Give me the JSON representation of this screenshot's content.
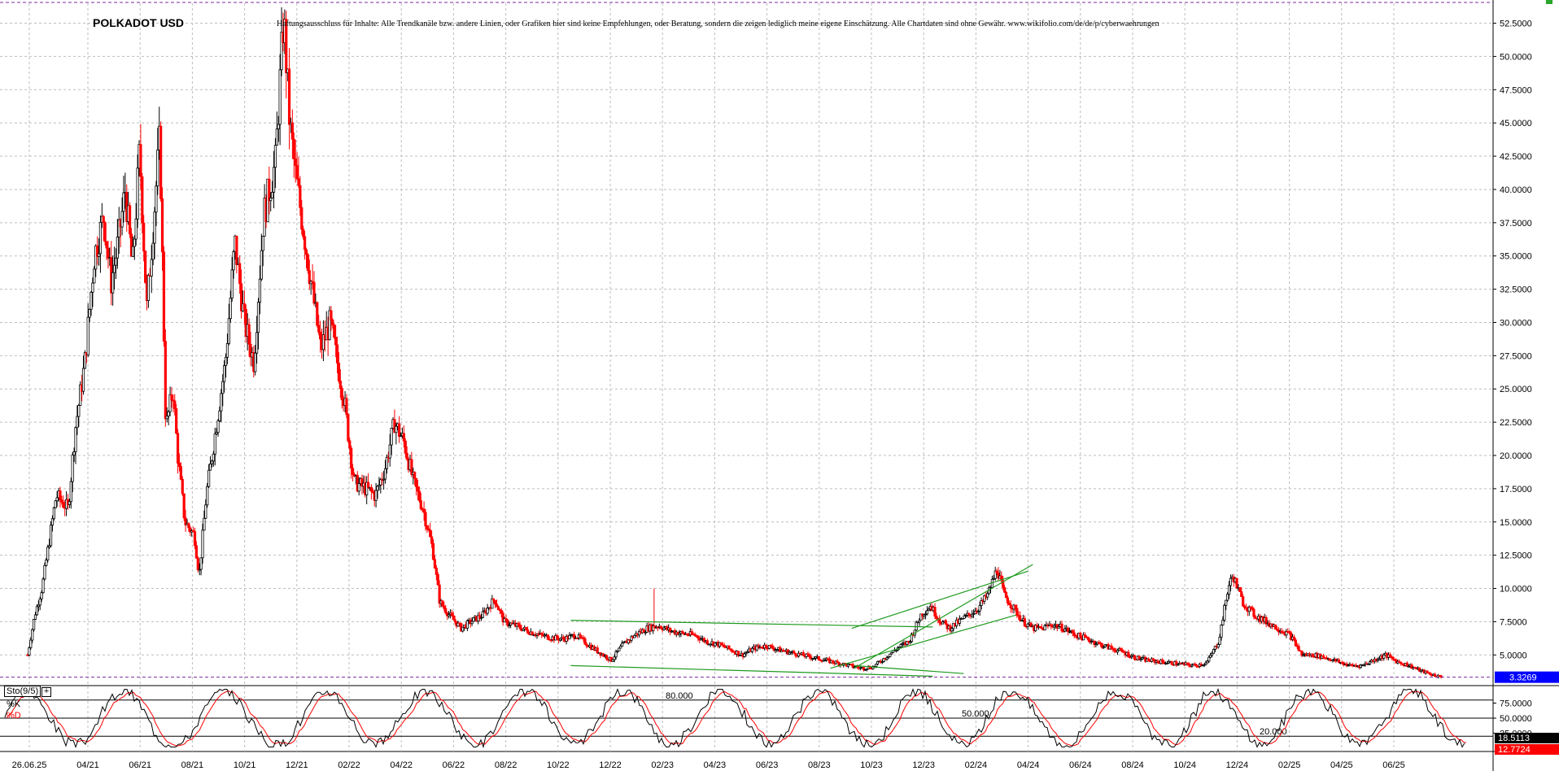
{
  "header": {
    "title": "POLKADOT USD",
    "disclaimer": "Haftungsausschluss für Inhalte: Alle Trendkanäle bzw. andere Linien, oder Grafiken hier sind keine Empfehlungen, oder Beratung, sondern die zeigen lediglich meine eigene Einschätzung. Alle Chartdaten sind ohne Gewähr.  www.wikifolio.com/de/de/p/cyberwaehrungen"
  },
  "indicator": {
    "name": "Sto(9/5)",
    "k_label": "%K",
    "d_label": "%D",
    "plus_symbol": "+"
  },
  "colors": {
    "up_candle": "#000000",
    "down_candle": "#ff0000",
    "grid": "#bdbdbd",
    "trendline": "#1e9a1e",
    "current_price_bg": "#0000ff",
    "stoch_k": "#000000",
    "stoch_d": "#ff0000",
    "stoch_k_badge": "#000000",
    "stoch_d_badge": "#ff0000"
  },
  "chart_data": [
    {
      "type": "candlestick",
      "title": "POLKADOT USD",
      "y_axis_position": "right",
      "ylim": [
        3.0,
        54.0
      ],
      "y_ticks": [
        5.0,
        7.5,
        10.0,
        12.5,
        15.0,
        17.5,
        20.0,
        22.5,
        25.0,
        27.5,
        30.0,
        32.5,
        35.0,
        37.5,
        40.0,
        42.5,
        45.0,
        47.5,
        50.0,
        52.5
      ],
      "y_tick_labels": [
        "5.0000",
        "7.5000",
        "10.0000",
        "12.5000",
        "15.0000",
        "17.5000",
        "20.0000",
        "22.5000",
        "25.0000",
        "27.5000",
        "30.0000",
        "32.5000",
        "35.0000",
        "37.5000",
        "40.0000",
        "42.5000",
        "45.0000",
        "47.5000",
        "50.0000",
        "52.5000"
      ],
      "x_ticks": [
        "26.06.25",
        "04/21",
        "06/21",
        "08/21",
        "10/21",
        "12/21",
        "02/22",
        "04/22",
        "06/22",
        "08/22",
        "10/22",
        "12/22",
        "02/23",
        "04/23",
        "06/23",
        "08/23",
        "10/23",
        "12/23",
        "02/24",
        "04/24",
        "06/24",
        "08/24",
        "10/24",
        "12/24",
        "02/25",
        "04/25",
        "06/25"
      ],
      "grid": true,
      "current_price": 3.3269,
      "current_price_label": "3.3269",
      "price_path": [
        [
          0,
          5.0
        ],
        [
          0.3,
          8.0
        ],
        [
          0.6,
          10.0
        ],
        [
          1.2,
          17.0
        ],
        [
          1.7,
          16.0
        ],
        [
          2.0,
          22.0
        ],
        [
          2.4,
          27.0
        ],
        [
          2.8,
          35.0
        ],
        [
          3.2,
          38.0
        ],
        [
          3.5,
          33.0
        ],
        [
          3.8,
          36.0
        ],
        [
          4.1,
          40.0
        ],
        [
          4.4,
          34.0
        ],
        [
          4.7,
          43.0
        ],
        [
          5.0,
          31.0
        ],
        [
          5.3,
          38.0
        ],
        [
          5.55,
          44.0
        ],
        [
          5.8,
          22.0
        ],
        [
          6.1,
          25.0
        ],
        [
          6.3,
          20.0
        ],
        [
          6.6,
          15.0
        ],
        [
          7.0,
          14.0
        ],
        [
          7.2,
          11.0
        ],
        [
          7.5,
          17.0
        ],
        [
          7.9,
          22.0
        ],
        [
          8.3,
          27.0
        ],
        [
          8.7,
          36.0
        ],
        [
          9.1,
          30.0
        ],
        [
          9.5,
          27.0
        ],
        [
          9.9,
          38.0
        ],
        [
          10.4,
          42.0
        ],
        [
          10.75,
          53.0
        ],
        [
          11.0,
          45.0
        ],
        [
          11.25,
          41.0
        ],
        [
          11.5,
          38.0
        ],
        [
          11.9,
          33.0
        ],
        [
          12.3,
          28.0
        ],
        [
          12.7,
          30.0
        ],
        [
          13.0,
          27.0
        ],
        [
          13.3,
          24.0
        ],
        [
          13.7,
          18.0
        ],
        [
          14.2,
          17.5
        ],
        [
          14.6,
          17.0
        ],
        [
          15.0,
          19.0
        ],
        [
          15.4,
          22.5
        ],
        [
          15.8,
          21.0
        ],
        [
          16.2,
          18.0
        ],
        [
          16.6,
          16.0
        ],
        [
          17.0,
          13.0
        ],
        [
          17.3,
          9.0
        ],
        [
          17.7,
          8.0
        ],
        [
          18.2,
          7.0
        ],
        [
          18.6,
          7.5
        ],
        [
          19.1,
          8.0
        ],
        [
          19.6,
          9.2
        ],
        [
          20.0,
          7.5
        ],
        [
          20.5,
          7.2
        ],
        [
          21.0,
          6.8
        ],
        [
          21.5,
          6.5
        ],
        [
          22.0,
          6.3
        ],
        [
          22.5,
          6.2
        ],
        [
          23.0,
          6.5
        ],
        [
          23.5,
          5.8
        ],
        [
          24.0,
          5.2
        ],
        [
          24.5,
          4.6
        ],
        [
          25.0,
          5.8
        ],
        [
          25.5,
          6.5
        ],
        [
          26.0,
          7.0
        ],
        [
          26.5,
          7.2
        ],
        [
          27.0,
          6.8
        ],
        [
          27.5,
          6.6
        ],
        [
          28.0,
          6.5
        ],
        [
          28.5,
          6.0
        ],
        [
          29.0,
          5.8
        ],
        [
          29.5,
          5.4
        ],
        [
          30.0,
          5.0
        ],
        [
          30.5,
          5.5
        ],
        [
          31.0,
          5.7
        ],
        [
          31.5,
          5.4
        ],
        [
          32.0,
          5.2
        ],
        [
          32.5,
          5.0
        ],
        [
          33.0,
          4.8
        ],
        [
          33.5,
          4.6
        ],
        [
          34.0,
          4.4
        ],
        [
          34.5,
          4.2
        ],
        [
          35.0,
          4.0
        ],
        [
          35.5,
          4.1
        ],
        [
          36.0,
          4.8
        ],
        [
          36.5,
          5.5
        ],
        [
          37.0,
          6.0
        ],
        [
          37.5,
          8.0
        ],
        [
          37.9,
          8.7
        ],
        [
          38.3,
          7.6
        ],
        [
          38.7,
          7.0
        ],
        [
          39.1,
          7.5
        ],
        [
          39.5,
          8.0
        ],
        [
          39.9,
          8.5
        ],
        [
          40.3,
          9.5
        ],
        [
          40.7,
          11.5
        ],
        [
          41.0,
          9.5
        ],
        [
          41.4,
          8.5
        ],
        [
          41.8,
          7.5
        ],
        [
          42.2,
          7.0
        ],
        [
          42.6,
          7.0
        ],
        [
          43.0,
          7.3
        ],
        [
          43.5,
          7.0
        ],
        [
          44.0,
          6.5
        ],
        [
          44.5,
          6.2
        ],
        [
          45.0,
          5.8
        ],
        [
          45.5,
          5.5
        ],
        [
          46.0,
          5.2
        ],
        [
          46.5,
          4.8
        ],
        [
          47.0,
          4.6
        ],
        [
          47.5,
          4.5
        ],
        [
          48.0,
          4.4
        ],
        [
          48.5,
          4.3
        ],
        [
          49.0,
          4.2
        ],
        [
          49.5,
          4.4
        ],
        [
          50.0,
          6.0
        ],
        [
          50.4,
          10.0
        ],
        [
          50.6,
          11.0
        ],
        [
          51.0,
          9.0
        ],
        [
          51.5,
          8.0
        ],
        [
          52.0,
          7.5
        ],
        [
          52.5,
          7.0
        ],
        [
          53.0,
          6.5
        ],
        [
          53.5,
          5.0
        ],
        [
          54.0,
          5.0
        ],
        [
          54.5,
          4.8
        ],
        [
          55.0,
          4.5
        ],
        [
          55.5,
          4.2
        ],
        [
          56.0,
          4.2
        ],
        [
          56.5,
          4.6
        ],
        [
          57.0,
          5.0
        ],
        [
          57.5,
          4.5
        ],
        [
          58.0,
          4.2
        ],
        [
          58.5,
          3.8
        ],
        [
          59.0,
          3.5
        ],
        [
          59.4,
          3.3
        ]
      ],
      "trendlines": [
        {
          "from": [
            22.8,
            7.6
          ],
          "to": [
            38.0,
            7.1
          ]
        },
        {
          "from": [
            22.8,
            4.2
          ],
          "to": [
            38.0,
            3.4
          ]
        },
        {
          "from": [
            34.7,
            4.0
          ],
          "to": [
            42.2,
            11.8
          ]
        },
        {
          "from": [
            34.7,
            4.2
          ],
          "to": [
            39.3,
            3.6
          ]
        },
        {
          "from": [
            33.7,
            4.0
          ],
          "to": [
            41.5,
            8.0
          ]
        },
        {
          "from": [
            34.6,
            7.0
          ],
          "to": [
            42.0,
            11.3
          ]
        }
      ],
      "markers": [
        {
          "x": 26.3,
          "y": 10.0,
          "label": ""
        }
      ]
    },
    {
      "type": "line",
      "title": "Sto(9/5)",
      "ylim": [
        0,
        100
      ],
      "reference_levels": [
        80,
        50,
        20
      ],
      "reference_labels": [
        "80.000",
        "50.000",
        "20.000"
      ],
      "y_ticks": [
        75,
        50,
        25
      ],
      "y_tick_labels": [
        "75.0000",
        "50.0000",
        "25.0000"
      ],
      "series": [
        {
          "name": "%K",
          "last_value": 18.5113,
          "last_label": "18.5113"
        },
        {
          "name": "%D",
          "last_value": 12.7724,
          "last_label": "12.7724"
        }
      ]
    }
  ]
}
